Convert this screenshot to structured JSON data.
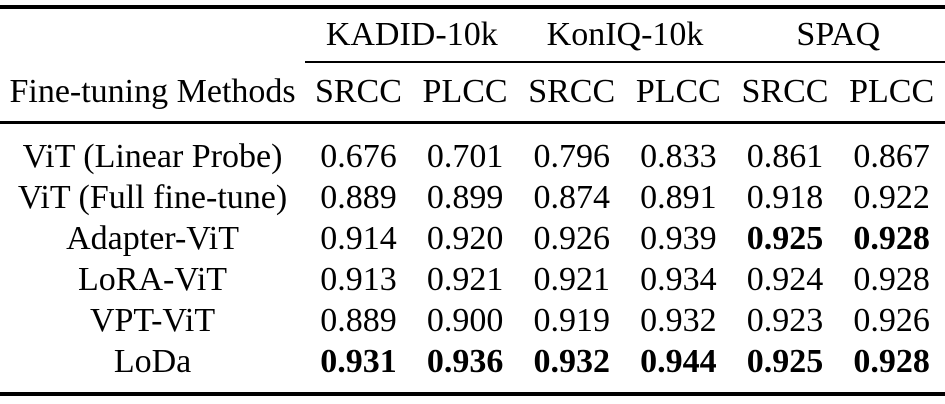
{
  "colors": {
    "text": "#000000",
    "background": "#ffffff",
    "rule": "#000000"
  },
  "table": {
    "corner_label": "Fine-tuning Methods",
    "groups": [
      {
        "label": "KADID-10k"
      },
      {
        "label": "KonIQ-10k"
      },
      {
        "label": "SPAQ"
      }
    ],
    "subheaders": [
      "SRCC",
      "PLCC",
      "SRCC",
      "PLCC",
      "SRCC",
      "PLCC"
    ],
    "rows": [
      {
        "method": "ViT (Linear Probe)",
        "values": [
          "0.676",
          "0.701",
          "0.796",
          "0.833",
          "0.861",
          "0.867"
        ],
        "bold": [
          false,
          false,
          false,
          false,
          false,
          false
        ]
      },
      {
        "method": "ViT (Full fine-tune)",
        "values": [
          "0.889",
          "0.899",
          "0.874",
          "0.891",
          "0.918",
          "0.922"
        ],
        "bold": [
          false,
          false,
          false,
          false,
          false,
          false
        ]
      },
      {
        "method": "Adapter-ViT",
        "values": [
          "0.914",
          "0.920",
          "0.926",
          "0.939",
          "0.925",
          "0.928"
        ],
        "bold": [
          false,
          false,
          false,
          false,
          true,
          true
        ]
      },
      {
        "method": "LoRA-ViT",
        "values": [
          "0.913",
          "0.921",
          "0.921",
          "0.934",
          "0.924",
          "0.928"
        ],
        "bold": [
          false,
          false,
          false,
          false,
          false,
          false
        ]
      },
      {
        "method": "VPT-ViT",
        "values": [
          "0.889",
          "0.900",
          "0.919",
          "0.932",
          "0.923",
          "0.926"
        ],
        "bold": [
          false,
          false,
          false,
          false,
          false,
          false
        ]
      },
      {
        "method": "LoDa",
        "values": [
          "0.931",
          "0.936",
          "0.932",
          "0.944",
          "0.925",
          "0.928"
        ],
        "bold": [
          true,
          true,
          true,
          true,
          true,
          true
        ]
      }
    ]
  }
}
